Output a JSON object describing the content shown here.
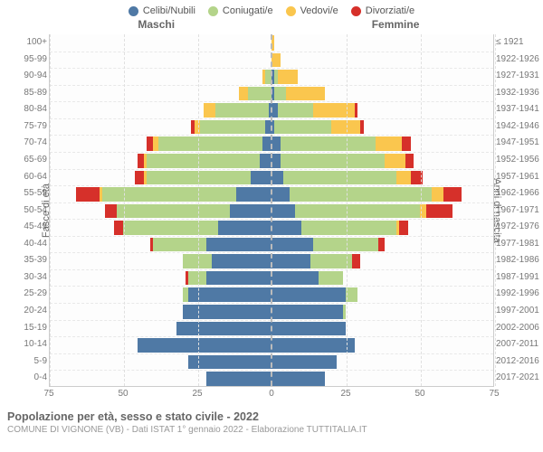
{
  "type": "population-pyramid",
  "legend": [
    {
      "label": "Celibi/Nubili",
      "color": "#4f79a5"
    },
    {
      "label": "Coniugati/e",
      "color": "#b4d48a"
    },
    {
      "label": "Vedovi/e",
      "color": "#fac64e"
    },
    {
      "label": "Divorziati/e",
      "color": "#d6302a"
    }
  ],
  "header_male": "Maschi",
  "header_female": "Femmine",
  "ylabel_left": "Fasce di età",
  "ylabel_right": "Anni di nascita",
  "xmax": 75,
  "xticks": [
    75,
    50,
    25,
    0,
    25,
    50,
    75
  ],
  "colors": {
    "celibi": "#4f79a5",
    "coniugati": "#b4d48a",
    "vedovi": "#fac64e",
    "divorziati": "#d6302a",
    "grid": "#e0e0e0",
    "center": "#bbbbbb",
    "row_divider": "#e8e8e8",
    "background": "#fdfdfd"
  },
  "title": "Popolazione per età, sesso e stato civile - 2022",
  "subtitle": "COMUNE DI VIGNONE (VB) - Dati ISTAT 1° gennaio 2022 - Elaborazione TUTTITALIA.IT",
  "rows": [
    {
      "age": "100+",
      "birth": "≤ 1921",
      "m": {
        "cel": 0,
        "con": 0,
        "ved": 0,
        "div": 0
      },
      "f": {
        "cel": 0,
        "con": 0,
        "ved": 1,
        "div": 0
      }
    },
    {
      "age": "95-99",
      "birth": "1922-1926",
      "m": {
        "cel": 0,
        "con": 0,
        "ved": 0,
        "div": 0
      },
      "f": {
        "cel": 0,
        "con": 0,
        "ved": 3,
        "div": 0
      }
    },
    {
      "age": "90-94",
      "birth": "1927-1931",
      "m": {
        "cel": 0,
        "con": 2,
        "ved": 1,
        "div": 0
      },
      "f": {
        "cel": 1,
        "con": 1,
        "ved": 7,
        "div": 0
      }
    },
    {
      "age": "85-89",
      "birth": "1932-1936",
      "m": {
        "cel": 0,
        "con": 8,
        "ved": 3,
        "div": 0
      },
      "f": {
        "cel": 1,
        "con": 4,
        "ved": 13,
        "div": 0
      }
    },
    {
      "age": "80-84",
      "birth": "1937-1941",
      "m": {
        "cel": 1,
        "con": 18,
        "ved": 4,
        "div": 0
      },
      "f": {
        "cel": 2,
        "con": 12,
        "ved": 14,
        "div": 1
      }
    },
    {
      "age": "75-79",
      "birth": "1942-1946",
      "m": {
        "cel": 2,
        "con": 22,
        "ved": 2,
        "div": 1
      },
      "f": {
        "cel": 1,
        "con": 19,
        "ved": 10,
        "div": 1
      }
    },
    {
      "age": "70-74",
      "birth": "1947-1951",
      "m": {
        "cel": 3,
        "con": 35,
        "ved": 2,
        "div": 2
      },
      "f": {
        "cel": 3,
        "con": 32,
        "ved": 9,
        "div": 3
      }
    },
    {
      "age": "65-69",
      "birth": "1952-1956",
      "m": {
        "cel": 4,
        "con": 38,
        "ved": 1,
        "div": 2
      },
      "f": {
        "cel": 3,
        "con": 35,
        "ved": 7,
        "div": 3
      }
    },
    {
      "age": "60-64",
      "birth": "1957-1961",
      "m": {
        "cel": 7,
        "con": 35,
        "ved": 1,
        "div": 3
      },
      "f": {
        "cel": 4,
        "con": 38,
        "ved": 5,
        "div": 4
      }
    },
    {
      "age": "55-59",
      "birth": "1962-1966",
      "m": {
        "cel": 12,
        "con": 45,
        "ved": 1,
        "div": 8
      },
      "f": {
        "cel": 6,
        "con": 48,
        "ved": 4,
        "div": 6
      }
    },
    {
      "age": "50-54",
      "birth": "1967-1971",
      "m": {
        "cel": 14,
        "con": 38,
        "ved": 0,
        "div": 4
      },
      "f": {
        "cel": 8,
        "con": 42,
        "ved": 2,
        "div": 9
      }
    },
    {
      "age": "45-49",
      "birth": "1972-1976",
      "m": {
        "cel": 18,
        "con": 32,
        "ved": 0,
        "div": 3
      },
      "f": {
        "cel": 10,
        "con": 32,
        "ved": 1,
        "div": 3
      }
    },
    {
      "age": "40-44",
      "birth": "1977-1981",
      "m": {
        "cel": 22,
        "con": 18,
        "ved": 0,
        "div": 1
      },
      "f": {
        "cel": 14,
        "con": 22,
        "ved": 0,
        "div": 2
      }
    },
    {
      "age": "35-39",
      "birth": "1982-1986",
      "m": {
        "cel": 20,
        "con": 10,
        "ved": 0,
        "div": 0
      },
      "f": {
        "cel": 13,
        "con": 14,
        "ved": 0,
        "div": 3
      }
    },
    {
      "age": "30-34",
      "birth": "1987-1991",
      "m": {
        "cel": 22,
        "con": 6,
        "ved": 0,
        "div": 1
      },
      "f": {
        "cel": 16,
        "con": 8,
        "ved": 0,
        "div": 0
      }
    },
    {
      "age": "25-29",
      "birth": "1992-1996",
      "m": {
        "cel": 28,
        "con": 2,
        "ved": 0,
        "div": 0
      },
      "f": {
        "cel": 25,
        "con": 4,
        "ved": 0,
        "div": 0
      }
    },
    {
      "age": "20-24",
      "birth": "1997-2001",
      "m": {
        "cel": 30,
        "con": 0,
        "ved": 0,
        "div": 0
      },
      "f": {
        "cel": 24,
        "con": 1,
        "ved": 0,
        "div": 0
      }
    },
    {
      "age": "15-19",
      "birth": "2002-2006",
      "m": {
        "cel": 32,
        "con": 0,
        "ved": 0,
        "div": 0
      },
      "f": {
        "cel": 25,
        "con": 0,
        "ved": 0,
        "div": 0
      }
    },
    {
      "age": "10-14",
      "birth": "2007-2011",
      "m": {
        "cel": 45,
        "con": 0,
        "ved": 0,
        "div": 0
      },
      "f": {
        "cel": 28,
        "con": 0,
        "ved": 0,
        "div": 0
      }
    },
    {
      "age": "5-9",
      "birth": "2012-2016",
      "m": {
        "cel": 28,
        "con": 0,
        "ved": 0,
        "div": 0
      },
      "f": {
        "cel": 22,
        "con": 0,
        "ved": 0,
        "div": 0
      }
    },
    {
      "age": "0-4",
      "birth": "2017-2021",
      "m": {
        "cel": 22,
        "con": 0,
        "ved": 0,
        "div": 0
      },
      "f": {
        "cel": 18,
        "con": 0,
        "ved": 0,
        "div": 0
      }
    }
  ]
}
